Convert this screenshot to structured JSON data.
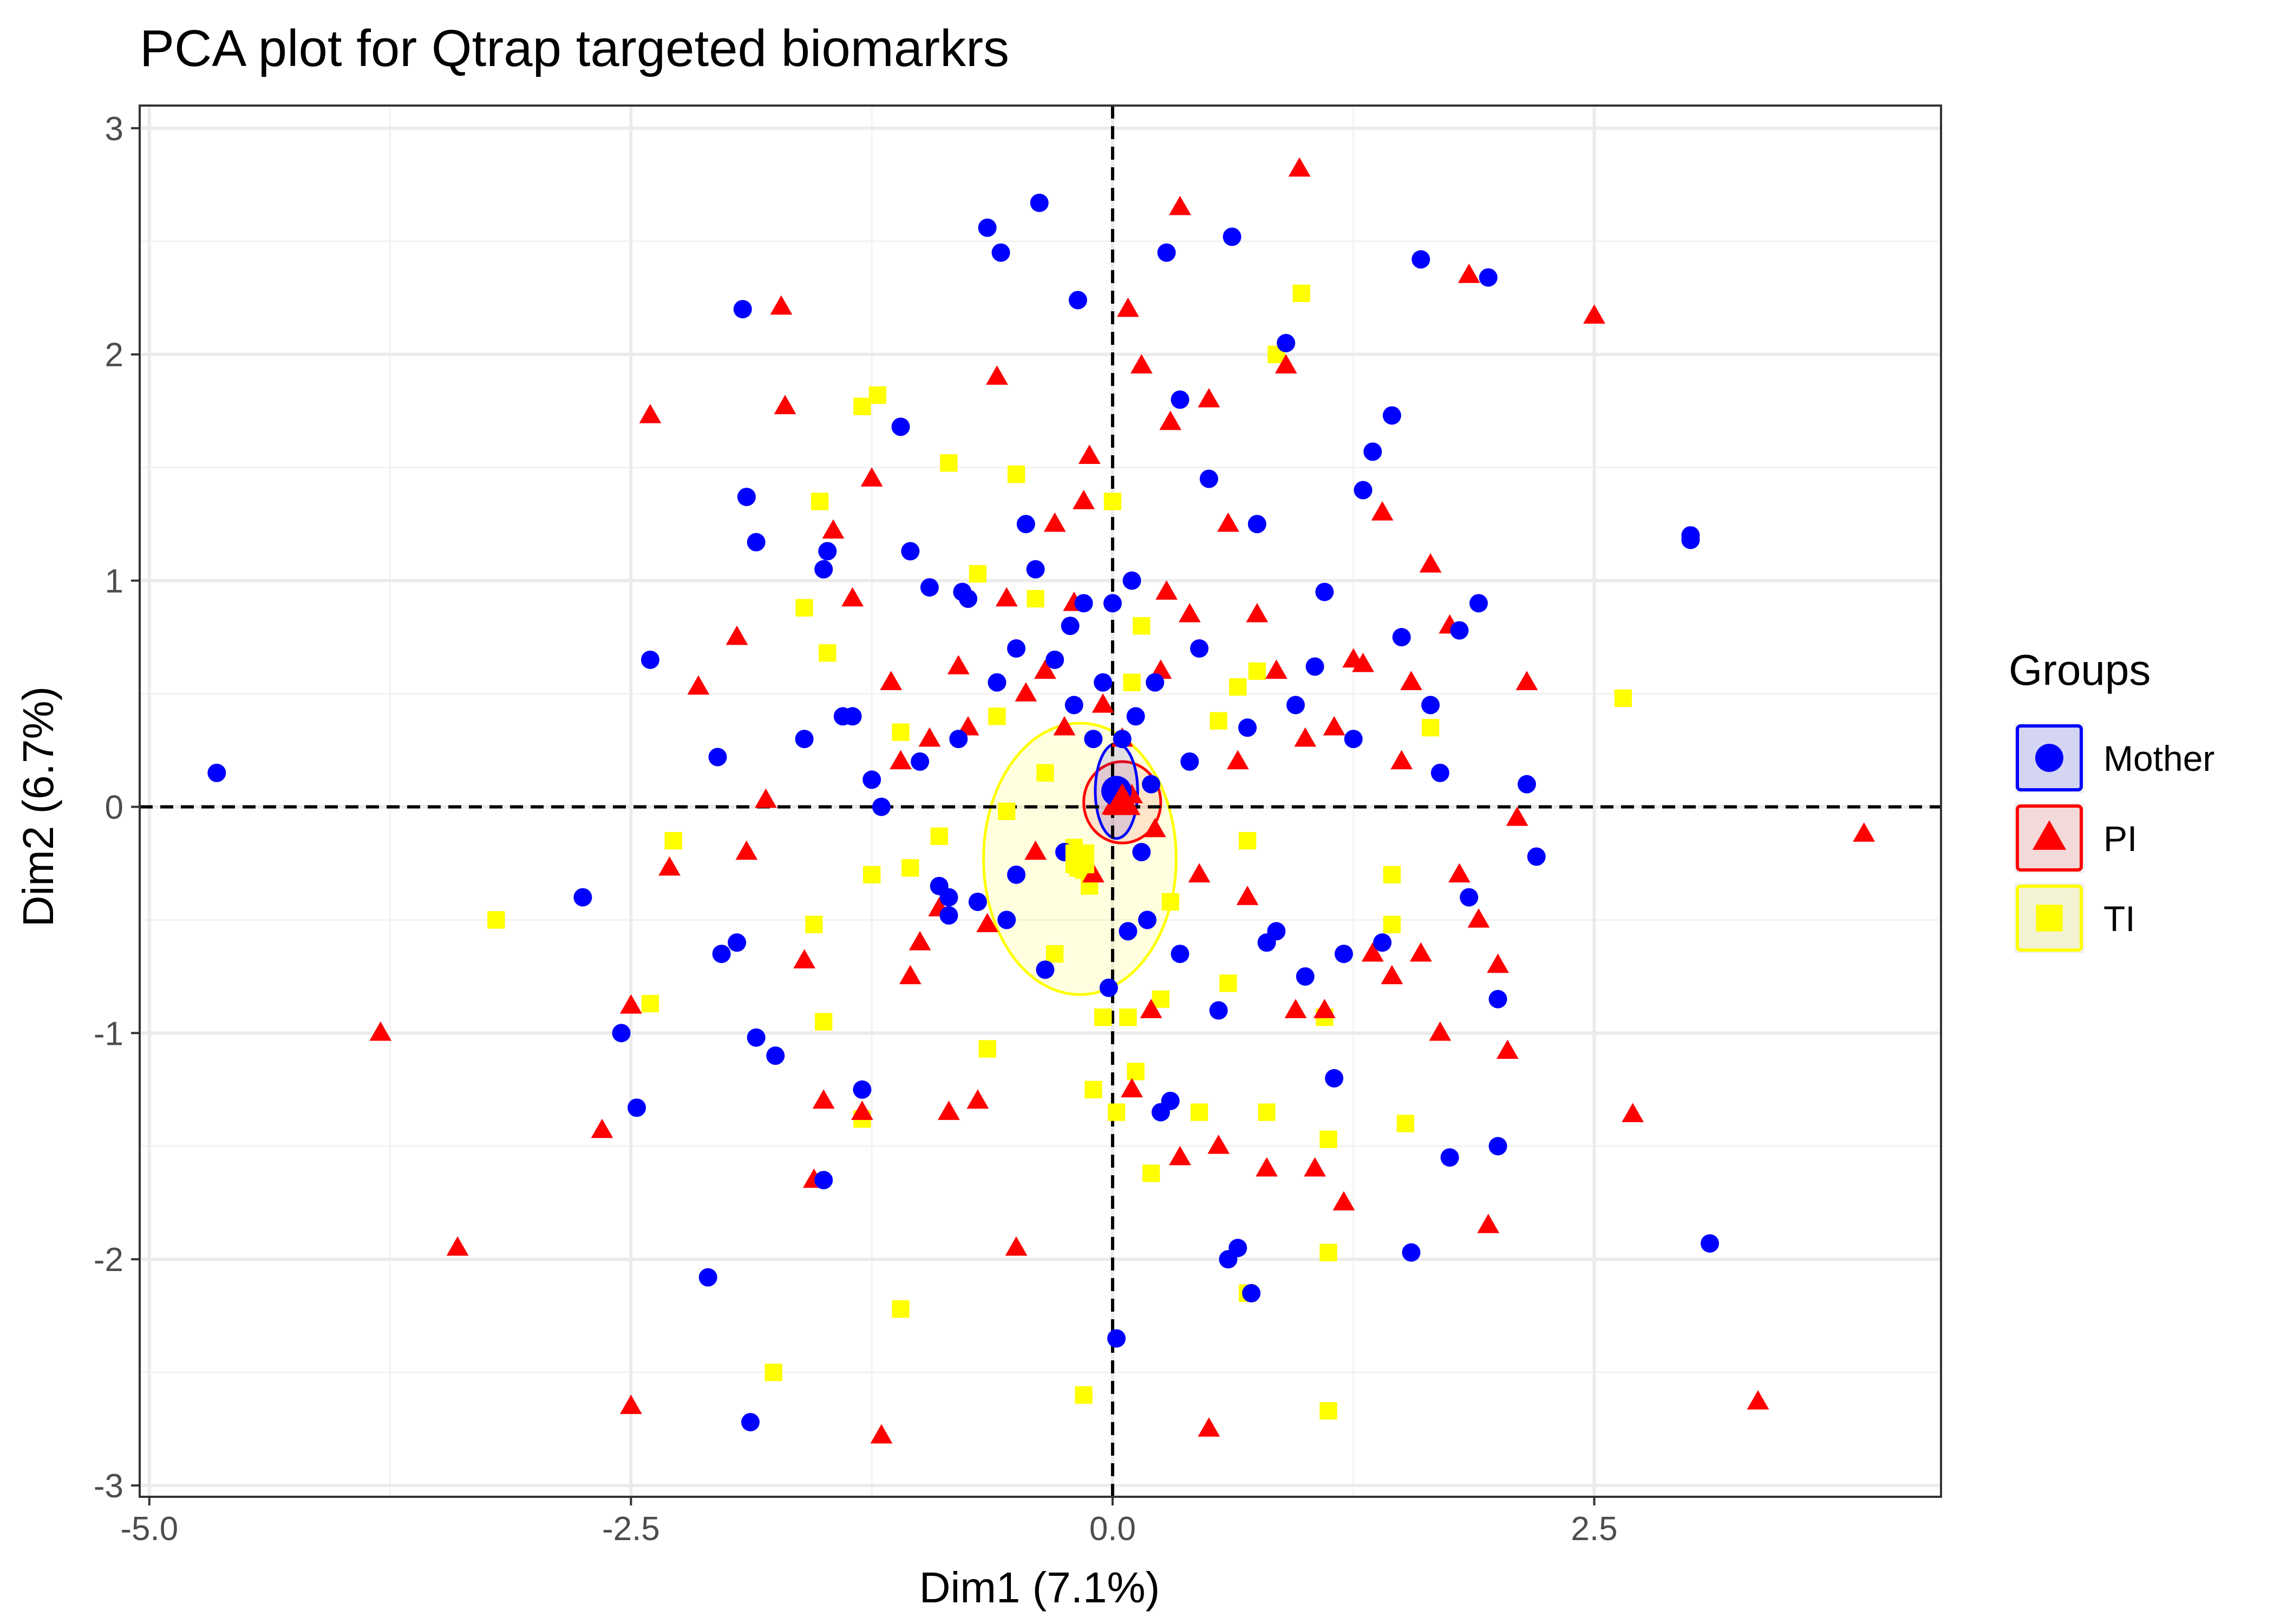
{
  "chart_data": {
    "type": "scatter",
    "title": "PCA plot for Qtrap targeted biomarkrs",
    "xlabel": "Dim1 (7.1%)",
    "ylabel": "Dim2 (6.7%)",
    "xlim": [
      -5.05,
      4.3
    ],
    "ylim": [
      -3.05,
      3.1
    ],
    "xticks": [
      -5.0,
      -2.5,
      0.0,
      2.5
    ],
    "xtick_labels": [
      "-5.0",
      "-2.5",
      "0.0",
      "2.5"
    ],
    "yticks": [
      -3,
      -2,
      -1,
      0,
      1,
      2,
      3
    ],
    "ytick_labels": [
      "-3",
      "-2",
      "-1",
      "0",
      "1",
      "2",
      "3"
    ],
    "grid": true,
    "reference_lines": {
      "x": 0,
      "y": 0,
      "style": "dashed"
    },
    "legend": {
      "title": "Groups",
      "position": "right",
      "entries": [
        {
          "label": "Mother",
          "color": "#0000ff",
          "shape": "circle"
        },
        {
          "label": "PI",
          "color": "#ff0000",
          "shape": "triangle"
        },
        {
          "label": "TI",
          "color": "#ffff00",
          "shape": "square"
        }
      ]
    },
    "series": [
      {
        "name": "Mother",
        "color": "#0000ff",
        "shape": "circle",
        "mean": [
          0.02,
          0.07
        ],
        "ellipse": {
          "cx": 0.02,
          "cy": 0.07,
          "rx": 0.11,
          "ry": 0.21
        },
        "points": [
          [
            -4.65,
            0.15
          ],
          [
            -2.75,
            -0.4
          ],
          [
            -2.55,
            -1.0
          ],
          [
            -2.47,
            -1.33
          ],
          [
            -2.4,
            0.65
          ],
          [
            -2.1,
            -2.08
          ],
          [
            -2.05,
            0.22
          ],
          [
            -2.03,
            -0.65
          ],
          [
            -1.95,
            -0.6
          ],
          [
            -1.92,
            2.2
          ],
          [
            -1.9,
            1.37
          ],
          [
            -1.88,
            -2.72
          ],
          [
            -1.85,
            -1.02
          ],
          [
            -1.85,
            1.17
          ],
          [
            -1.75,
            -1.1
          ],
          [
            -1.6,
            0.3
          ],
          [
            -1.5,
            -1.65
          ],
          [
            -1.5,
            1.05
          ],
          [
            -1.48,
            1.13
          ],
          [
            -1.4,
            0.4
          ],
          [
            -1.35,
            0.4
          ],
          [
            -1.3,
            -1.25
          ],
          [
            -1.25,
            0.12
          ],
          [
            -1.2,
            0.0
          ],
          [
            -1.1,
            1.68
          ],
          [
            -1.05,
            1.13
          ],
          [
            -1.0,
            0.2
          ],
          [
            -0.95,
            0.97
          ],
          [
            -0.9,
            -0.35
          ],
          [
            -0.85,
            -0.4
          ],
          [
            -0.8,
            0.3
          ],
          [
            -0.78,
            0.95
          ],
          [
            -0.75,
            0.92
          ],
          [
            -0.7,
            -0.42
          ],
          [
            -0.65,
            2.56
          ],
          [
            -0.6,
            0.55
          ],
          [
            -0.55,
            -0.5
          ],
          [
            -0.5,
            0.7
          ],
          [
            -0.5,
            -0.3
          ],
          [
            -0.45,
            1.25
          ],
          [
            -0.4,
            1.05
          ],
          [
            -0.35,
            -0.72
          ],
          [
            -0.3,
            0.65
          ],
          [
            -0.25,
            -0.2
          ],
          [
            -0.2,
            0.45
          ],
          [
            -0.18,
            2.24
          ],
          [
            -0.15,
            0.9
          ],
          [
            -0.1,
            0.3
          ],
          [
            -0.05,
            0.55
          ],
          [
            -0.02,
            -0.8
          ],
          [
            0.0,
            0.9
          ],
          [
            0.05,
            0.3
          ],
          [
            0.08,
            -0.55
          ],
          [
            0.1,
            1.0
          ],
          [
            0.12,
            0.4
          ],
          [
            0.15,
            -0.2
          ],
          [
            0.18,
            -0.5
          ],
          [
            0.22,
            0.55
          ],
          [
            0.25,
            -1.35
          ],
          [
            0.28,
            2.45
          ],
          [
            0.3,
            -1.3
          ],
          [
            0.35,
            -0.65
          ],
          [
            0.4,
            0.2
          ],
          [
            0.45,
            0.7
          ],
          [
            0.5,
            1.45
          ],
          [
            0.55,
            -0.9
          ],
          [
            0.6,
            -2.0
          ],
          [
            0.62,
            2.52
          ],
          [
            0.65,
            -1.95
          ],
          [
            0.7,
            0.35
          ],
          [
            0.72,
            -2.15
          ],
          [
            0.75,
            1.25
          ],
          [
            0.8,
            -0.6
          ],
          [
            0.85,
            -0.55
          ],
          [
            0.9,
            2.05
          ],
          [
            0.95,
            0.45
          ],
          [
            1.0,
            -0.75
          ],
          [
            1.05,
            0.62
          ],
          [
            1.1,
            0.95
          ],
          [
            1.15,
            -1.2
          ],
          [
            1.2,
            -0.65
          ],
          [
            1.25,
            0.3
          ],
          [
            1.3,
            1.4
          ],
          [
            1.35,
            1.57
          ],
          [
            1.4,
            -0.6
          ],
          [
            1.45,
            1.73
          ],
          [
            1.5,
            0.75
          ],
          [
            1.55,
            -1.97
          ],
          [
            1.6,
            2.42
          ],
          [
            1.65,
            0.45
          ],
          [
            1.7,
            0.15
          ],
          [
            1.75,
            -1.55
          ],
          [
            1.8,
            0.78
          ],
          [
            1.85,
            -0.4
          ],
          [
            1.9,
            0.9
          ],
          [
            1.95,
            2.34
          ],
          [
            2.0,
            -0.85
          ],
          [
            2.0,
            -1.5
          ],
          [
            2.15,
            0.1
          ],
          [
            2.2,
            -0.22
          ],
          [
            3.0,
            1.2
          ],
          [
            3.0,
            1.18
          ],
          [
            3.1,
            -1.93
          ],
          [
            0.2,
            0.1
          ],
          [
            0.02,
            -2.35
          ],
          [
            -0.38,
            2.67
          ],
          [
            -0.58,
            2.45
          ],
          [
            0.35,
            1.8
          ],
          [
            -0.85,
            -0.48
          ],
          [
            -0.22,
            0.8
          ]
        ]
      },
      {
        "name": "PI",
        "color": "#ff0000",
        "shape": "triangle",
        "mean": [
          0.05,
          0.02
        ],
        "ellipse": {
          "cx": 0.05,
          "cy": 0.02,
          "rx": 0.2,
          "ry": 0.18
        },
        "points": [
          [
            -3.8,
            -1.0
          ],
          [
            -3.4,
            -1.95
          ],
          [
            -2.65,
            -1.43
          ],
          [
            -2.5,
            -0.88
          ],
          [
            -2.5,
            -2.65
          ],
          [
            -2.4,
            1.73
          ],
          [
            -2.3,
            -0.27
          ],
          [
            -2.15,
            0.53
          ],
          [
            -1.95,
            0.75
          ],
          [
            -1.9,
            -0.2
          ],
          [
            -1.8,
            0.03
          ],
          [
            -1.72,
            2.21
          ],
          [
            -1.7,
            1.77
          ],
          [
            -1.6,
            -0.68
          ],
          [
            -1.55,
            -1.65
          ],
          [
            -1.5,
            -1.3
          ],
          [
            -1.45,
            1.22
          ],
          [
            -1.35,
            0.92
          ],
          [
            -1.3,
            -1.35
          ],
          [
            -1.25,
            1.45
          ],
          [
            -1.2,
            -2.78
          ],
          [
            -1.15,
            0.55
          ],
          [
            -1.1,
            0.2
          ],
          [
            -1.05,
            -0.75
          ],
          [
            -1.0,
            -0.6
          ],
          [
            -0.95,
            0.3
          ],
          [
            -0.9,
            -0.45
          ],
          [
            -0.85,
            -1.35
          ],
          [
            -0.8,
            0.62
          ],
          [
            -0.75,
            0.35
          ],
          [
            -0.7,
            -1.3
          ],
          [
            -0.65,
            -0.52
          ],
          [
            -0.6,
            1.9
          ],
          [
            -0.55,
            0.92
          ],
          [
            -0.5,
            -1.95
          ],
          [
            -0.45,
            0.5
          ],
          [
            -0.4,
            -0.2
          ],
          [
            -0.35,
            0.6
          ],
          [
            -0.3,
            1.25
          ],
          [
            -0.25,
            0.35
          ],
          [
            -0.2,
            0.9
          ],
          [
            -0.15,
            1.35
          ],
          [
            -0.1,
            -0.3
          ],
          [
            -0.05,
            0.45
          ],
          [
            0.05,
            0.3
          ],
          [
            0.08,
            2.2
          ],
          [
            0.1,
            -1.25
          ],
          [
            0.15,
            1.95
          ],
          [
            0.2,
            -0.9
          ],
          [
            0.25,
            0.6
          ],
          [
            0.3,
            1.7
          ],
          [
            0.35,
            -1.55
          ],
          [
            0.4,
            0.85
          ],
          [
            0.45,
            -0.3
          ],
          [
            0.5,
            -2.75
          ],
          [
            0.5,
            1.8
          ],
          [
            0.55,
            -1.5
          ],
          [
            0.6,
            1.25
          ],
          [
            0.65,
            0.2
          ],
          [
            0.7,
            -0.4
          ],
          [
            0.75,
            0.85
          ],
          [
            0.8,
            -1.6
          ],
          [
            0.85,
            0.6
          ],
          [
            0.9,
            1.95
          ],
          [
            0.95,
            -0.9
          ],
          [
            0.97,
            2.82
          ],
          [
            1.0,
            0.3
          ],
          [
            1.05,
            -1.6
          ],
          [
            1.1,
            -0.9
          ],
          [
            1.15,
            0.35
          ],
          [
            1.2,
            -1.75
          ],
          [
            1.25,
            0.65
          ],
          [
            1.3,
            0.63
          ],
          [
            1.35,
            -0.65
          ],
          [
            1.4,
            1.3
          ],
          [
            1.45,
            -0.75
          ],
          [
            1.5,
            0.2
          ],
          [
            1.55,
            0.55
          ],
          [
            1.6,
            -0.65
          ],
          [
            1.65,
            1.07
          ],
          [
            1.7,
            -1.0
          ],
          [
            1.75,
            0.8
          ],
          [
            1.8,
            -0.3
          ],
          [
            1.85,
            2.35
          ],
          [
            1.9,
            -0.5
          ],
          [
            1.95,
            -1.85
          ],
          [
            2.0,
            -0.7
          ],
          [
            2.05,
            -1.08
          ],
          [
            2.1,
            -0.05
          ],
          [
            2.15,
            0.55
          ],
          [
            2.5,
            2.17
          ],
          [
            2.7,
            -1.36
          ],
          [
            3.35,
            -2.63
          ],
          [
            3.9,
            -0.12
          ],
          [
            0.35,
            2.65
          ],
          [
            -0.12,
            1.55
          ],
          [
            0.22,
            -0.1
          ],
          [
            0.28,
            0.95
          ],
          [
            0.0,
            0.0
          ],
          [
            0.1,
            0.05
          ]
        ]
      },
      {
        "name": "TI",
        "color": "#ffff00",
        "shape": "square",
        "mean": [
          -0.17,
          -0.23
        ],
        "ellipse": {
          "cx": -0.17,
          "cy": -0.23,
          "rx": 0.5,
          "ry": 0.6
        },
        "points": [
          [
            -3.2,
            -0.5
          ],
          [
            -2.4,
            -0.87
          ],
          [
            -2.28,
            -0.15
          ],
          [
            -1.76,
            -2.5
          ],
          [
            -1.6,
            0.88
          ],
          [
            -1.55,
            -0.52
          ],
          [
            -1.52,
            1.35
          ],
          [
            -1.5,
            -0.95
          ],
          [
            -1.48,
            0.68
          ],
          [
            -1.3,
            -1.38
          ],
          [
            -1.3,
            1.77
          ],
          [
            -1.25,
            -0.3
          ],
          [
            -1.22,
            1.82
          ],
          [
            -1.1,
            0.33
          ],
          [
            -1.1,
            -2.22
          ],
          [
            -1.05,
            -0.27
          ],
          [
            -0.9,
            -0.13
          ],
          [
            -0.85,
            1.52
          ],
          [
            -0.7,
            1.03
          ],
          [
            -0.65,
            -1.07
          ],
          [
            -0.6,
            0.4
          ],
          [
            -0.55,
            -0.02
          ],
          [
            -0.5,
            1.47
          ],
          [
            -0.4,
            0.92
          ],
          [
            -0.35,
            0.15
          ],
          [
            -0.3,
            -0.65
          ],
          [
            -0.2,
            -0.18
          ],
          [
            -0.18,
            -0.27
          ],
          [
            -0.15,
            -2.6
          ],
          [
            -0.12,
            -0.35
          ],
          [
            -0.1,
            -1.25
          ],
          [
            -0.05,
            -0.93
          ],
          [
            0.0,
            1.35
          ],
          [
            0.02,
            -1.35
          ],
          [
            0.08,
            -0.93
          ],
          [
            0.1,
            0.55
          ],
          [
            0.12,
            -1.17
          ],
          [
            0.15,
            0.8
          ],
          [
            0.2,
            -1.62
          ],
          [
            0.25,
            -0.85
          ],
          [
            0.3,
            -0.42
          ],
          [
            0.45,
            -1.35
          ],
          [
            0.55,
            0.38
          ],
          [
            0.6,
            -0.78
          ],
          [
            0.65,
            0.53
          ],
          [
            0.7,
            -0.15
          ],
          [
            0.7,
            -2.15
          ],
          [
            0.75,
            0.6
          ],
          [
            0.8,
            -1.35
          ],
          [
            0.85,
            2.0
          ],
          [
            0.98,
            2.27
          ],
          [
            1.1,
            -0.93
          ],
          [
            1.12,
            -1.47
          ],
          [
            1.12,
            -1.97
          ],
          [
            1.12,
            -2.67
          ],
          [
            1.45,
            -0.52
          ],
          [
            1.45,
            -0.3
          ],
          [
            1.52,
            -1.4
          ],
          [
            1.65,
            0.35
          ],
          [
            2.65,
            0.48
          ],
          [
            -0.18,
            -0.22
          ],
          [
            -0.15,
            -0.28
          ]
        ]
      }
    ]
  }
}
